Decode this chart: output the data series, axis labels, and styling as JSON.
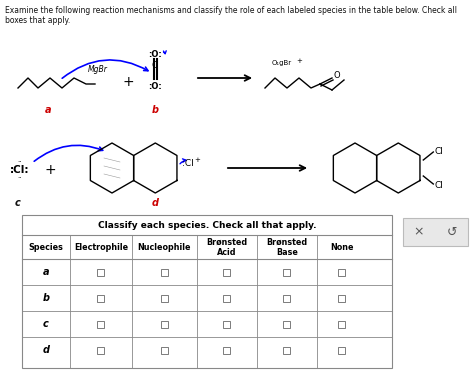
{
  "title": "Examine the following reaction mechanisms and classify the role of each labeled species in the table below. Check all boxes that apply.",
  "table_title": "Classify each species. Check all that apply.",
  "col_headers": [
    "Species",
    "Electrophile",
    "Nucleophile",
    "Brønsted\nAcid",
    "Brønsted\nBase",
    "None"
  ],
  "row_labels": [
    "a",
    "b",
    "c",
    "d"
  ],
  "bg_color": "#ffffff",
  "table_border_color": "#888888",
  "text_color": "#111111",
  "a_label_color": "#cc0000",
  "b_label_color": "#cc0000",
  "c_label_color": "#111111",
  "d_label_color": "#cc0000"
}
